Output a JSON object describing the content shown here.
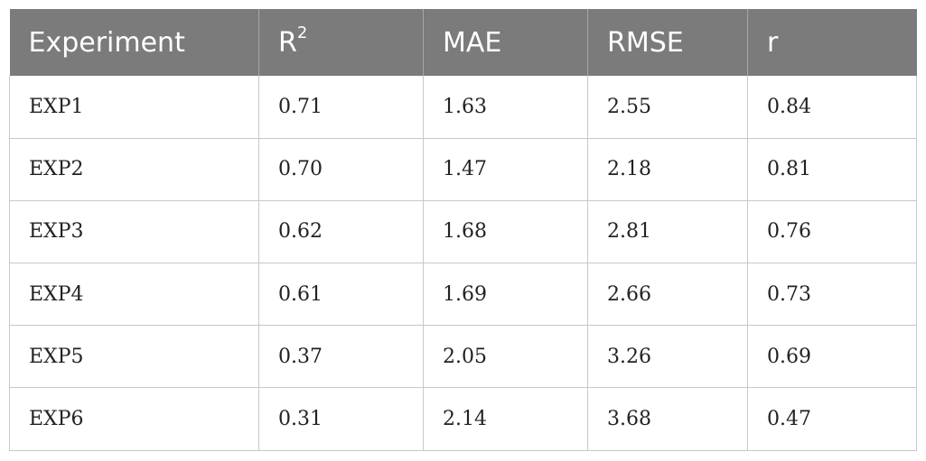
{
  "table": {
    "header": {
      "experiment": "Experiment",
      "r2_base": "R",
      "r2_sup": "2",
      "mae": "MAE",
      "rmse": "RMSE",
      "r": "r"
    },
    "rows": [
      {
        "experiment": "EXP1",
        "r2": "0.71",
        "mae": "1.63",
        "rmse": "2.55",
        "r": "0.84"
      },
      {
        "experiment": "EXP2",
        "r2": "0.70",
        "mae": "1.47",
        "rmse": "2.18",
        "r": "0.81"
      },
      {
        "experiment": "EXP3",
        "r2": "0.62",
        "mae": "1.68",
        "rmse": "2.81",
        "r": "0.76"
      },
      {
        "experiment": "EXP4",
        "r2": "0.61",
        "mae": "1.69",
        "rmse": "2.66",
        "r": "0.73"
      },
      {
        "experiment": "EXP5",
        "r2": "0.37",
        "mae": "2.05",
        "rmse": "3.26",
        "r": "0.69"
      },
      {
        "experiment": "EXP6",
        "r2": "0.31",
        "mae": "2.14",
        "rmse": "3.68",
        "r": "0.47"
      }
    ]
  }
}
